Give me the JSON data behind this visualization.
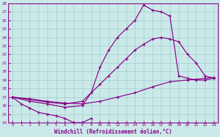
{
  "xlabel": "Windchill (Refroidissement éolien,°C)",
  "ylabel": "",
  "xlim": [
    -0.5,
    23.5
  ],
  "ylim": [
    14,
    28
  ],
  "xticks": [
    0,
    1,
    2,
    3,
    4,
    5,
    6,
    7,
    8,
    9,
    10,
    11,
    12,
    13,
    14,
    15,
    16,
    17,
    18,
    19,
    20,
    21,
    22,
    23
  ],
  "yticks": [
    14,
    15,
    16,
    17,
    18,
    19,
    20,
    21,
    22,
    23,
    24,
    25,
    26,
    27,
    28
  ],
  "bg_color": "#cce9e9",
  "line_color": "#880088",
  "grid_color": "#99cccc",
  "curves": [
    {
      "x": [
        0,
        1,
        2,
        3,
        4,
        5,
        6,
        7,
        8,
        9
      ],
      "y": [
        17,
        16.2,
        15.7,
        15.2,
        15.0,
        14.8,
        14.5,
        14.0,
        14.0,
        14.5
      ]
    },
    {
      "x": [
        0,
        2,
        4,
        6,
        8,
        10,
        12,
        14,
        16,
        18,
        20,
        22,
        23
      ],
      "y": [
        17,
        16.8,
        16.5,
        16.3,
        16.2,
        16.5,
        17.0,
        17.5,
        18.2,
        18.8,
        19.0,
        19.2,
        19.3
      ]
    },
    {
      "x": [
        0,
        2,
        4,
        6,
        8,
        10,
        11,
        12,
        13,
        14,
        15,
        16,
        17,
        18,
        19,
        20,
        21,
        22,
        23
      ],
      "y": [
        17,
        16.7,
        16.4,
        16.2,
        16.5,
        18.5,
        19.5,
        20.5,
        21.5,
        22.5,
        23.2,
        23.8,
        24.0,
        23.8,
        23.5,
        22.0,
        21.0,
        19.5,
        19.2
      ]
    },
    {
      "x": [
        0,
        2,
        4,
        6,
        8,
        9,
        10,
        11,
        12,
        13,
        14,
        15,
        16,
        17,
        18,
        19,
        20,
        21,
        22,
        23
      ],
      "y": [
        17,
        16.5,
        16.2,
        15.8,
        16.0,
        17.5,
        20.5,
        22.5,
        24.0,
        25.0,
        26.0,
        27.8,
        27.2,
        27.0,
        26.5,
        19.5,
        19.2,
        19.0,
        19.0,
        19.2
      ]
    }
  ]
}
